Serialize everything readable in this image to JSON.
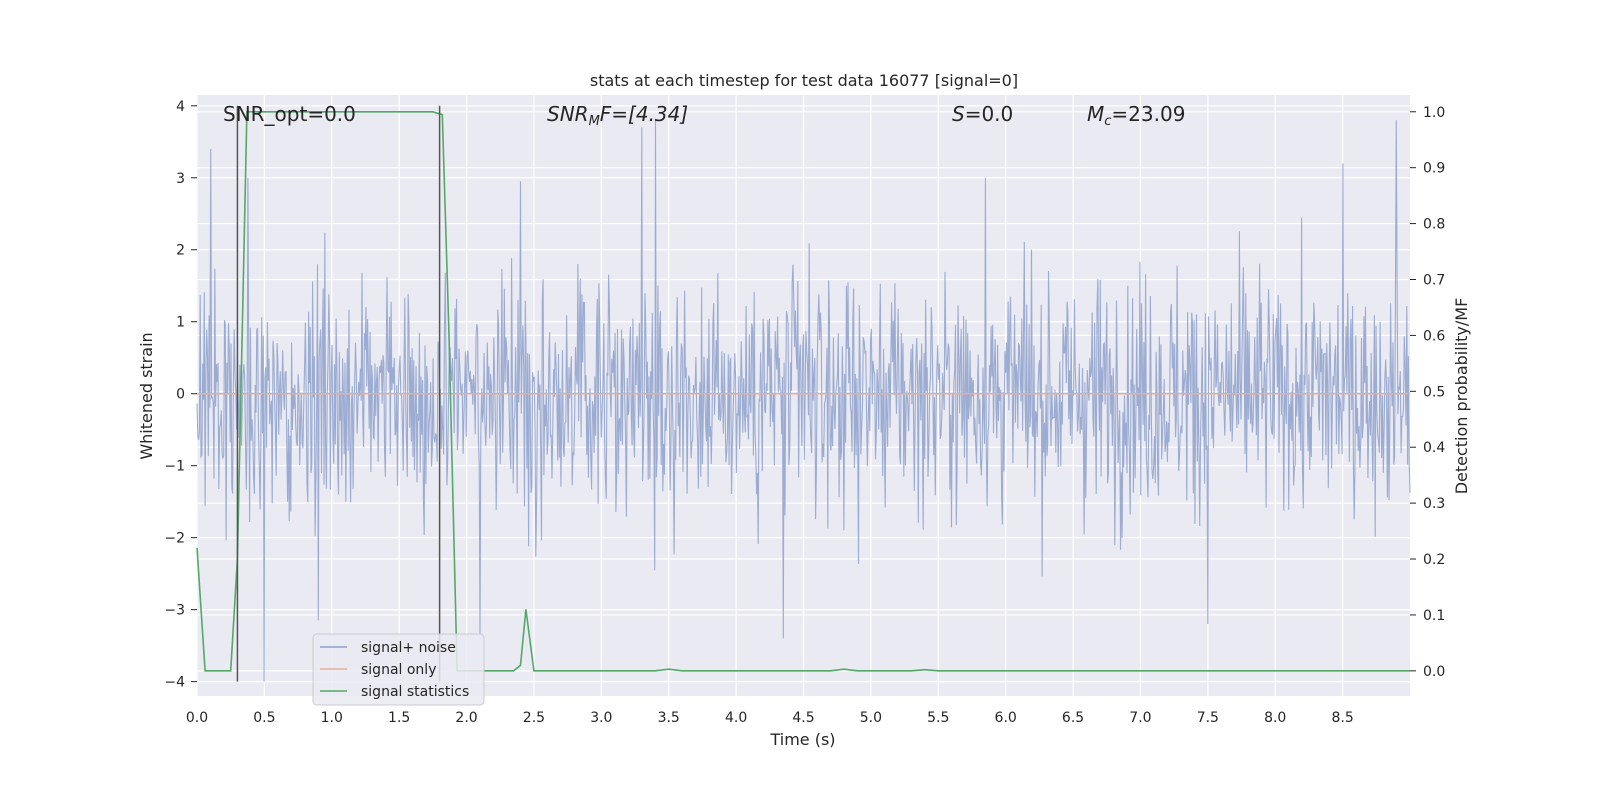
{
  "chart_data": {
    "type": "line",
    "title": "stats at each timestep for test data 16077 [signal=0]",
    "xlabel": "Time (s)",
    "ylabel": "Whitened strain",
    "ylabel_right": "Detection probability/MF",
    "xlim": [
      0.0,
      9.0
    ],
    "ylim": [
      -4.2,
      4.15
    ],
    "ylim_right": [
      -0.045,
      1.03
    ],
    "x_ticks": [
      "0.0",
      "0.5",
      "1.0",
      "1.5",
      "2.0",
      "2.5",
      "3.0",
      "3.5",
      "4.0",
      "4.5",
      "5.0",
      "5.5",
      "6.0",
      "6.5",
      "7.0",
      "7.5",
      "8.0",
      "8.5"
    ],
    "y_ticks": [
      "−4",
      "−3",
      "−2",
      "−1",
      "0",
      "1",
      "2",
      "3",
      "4"
    ],
    "y_ticks_right": [
      "0.0",
      "0.1",
      "0.2",
      "0.3",
      "0.4",
      "0.5",
      "0.6",
      "0.7",
      "0.8",
      "0.9",
      "1.0"
    ],
    "grid": true,
    "legend_position": "lower-left",
    "annotations": {
      "snr_opt": "SNR_opt=0.0",
      "snr_mf_base": "SNR",
      "snr_mf_sub": "M",
      "snr_mf_rest": "F=[4.34]",
      "s_var": "S",
      "s_rest": "=0.0",
      "mc_base": "M",
      "mc_sub": "c",
      "mc_rest": "=23.09"
    },
    "vertical_markers": [
      0.3,
      1.8
    ],
    "series": [
      {
        "name": "signal+ noise",
        "color": "#8da0cb",
        "description": "whitened noise trace, amplitude roughly within ±2.5 with spikes to about ±3.8",
        "peak_points": [
          [
            0.1,
            3.4
          ],
          [
            0.38,
            3.0
          ],
          [
            0.5,
            -4.0
          ],
          [
            0.9,
            -3.15
          ],
          [
            2.1,
            -3.35
          ],
          [
            2.4,
            2.95
          ],
          [
            3.3,
            3.7
          ],
          [
            3.4,
            3.8
          ],
          [
            4.35,
            -3.4
          ],
          [
            5.85,
            3.0
          ],
          [
            7.5,
            -3.2
          ],
          [
            8.5,
            3.2
          ],
          [
            8.9,
            3.8
          ]
        ]
      },
      {
        "name": "signal only",
        "color": "#e5ae98",
        "x": [
          0.0,
          9.0
        ],
        "y": [
          0.0,
          0.0
        ]
      },
      {
        "name": "signal statistics",
        "color": "#55a868",
        "axis": "right",
        "x": [
          0.0,
          0.06,
          0.25,
          0.3,
          0.37,
          1.75,
          1.82,
          1.87,
          1.93,
          2.0,
          2.35,
          2.4,
          2.44,
          2.5,
          3.4,
          3.5,
          3.6,
          4.7,
          4.8,
          4.9,
          5.3,
          5.4,
          5.5,
          9.0
        ],
        "y": [
          0.22,
          0.0,
          0.0,
          0.2,
          1.0,
          1.0,
          0.995,
          0.6,
          0.0,
          0.0,
          0.0,
          0.01,
          0.11,
          0.0,
          0.0,
          0.003,
          0.0,
          0.0,
          0.003,
          0.0,
          0.0,
          0.002,
          0.0,
          0.0
        ]
      }
    ]
  }
}
